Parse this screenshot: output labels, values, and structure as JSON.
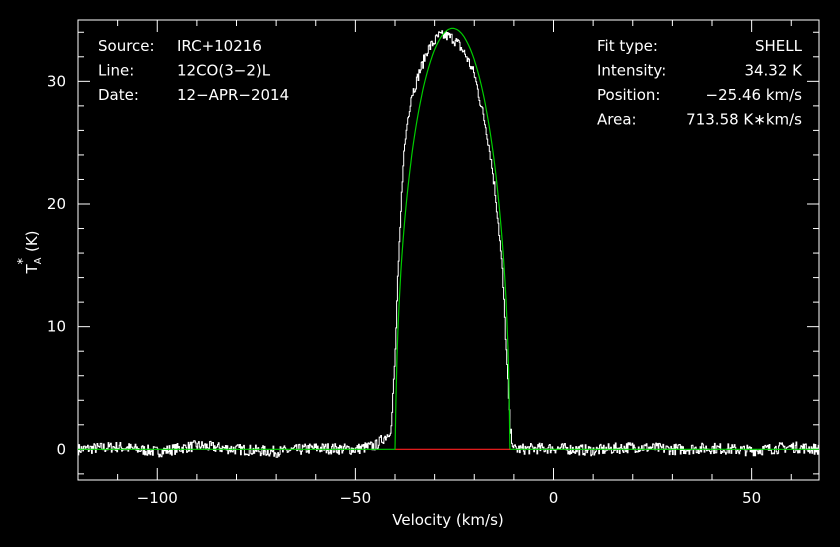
{
  "chart_data": {
    "type": "line",
    "title": "",
    "xlabel": "Velocity (km/s)",
    "ylabel_main": "T",
    "ylabel_sup": "*",
    "ylabel_sub": "A",
    "ylabel_unit": "(K)",
    "xlim": [
      -120,
      67
    ],
    "ylim": [
      -2.5,
      35
    ],
    "x_ticks": [
      -100,
      -50,
      0,
      50
    ],
    "x_tick_labels": [
      "−100",
      "−50",
      "0",
      "50"
    ],
    "y_ticks": [
      0,
      10,
      20,
      30
    ],
    "y_tick_labels": [
      "0",
      "10",
      "20",
      "30"
    ],
    "grid": false,
    "legend": "none",
    "annotations_left": [
      {
        "key": "Source:",
        "value": "IRC+10216"
      },
      {
        "key": "Line:",
        "value": "12CO(3−2)L"
      },
      {
        "key": "Date:",
        "value": "12−APR−2014"
      }
    ],
    "annotations_right": [
      {
        "key": "Fit type:",
        "value": "SHELL"
      },
      {
        "key": "Intensity:",
        "value": "34.32 K"
      },
      {
        "key": "Position:",
        "value": "−25.46 km/s"
      },
      {
        "key": "Area:",
        "value": "713.58 K∗km/s"
      }
    ],
    "series": [
      {
        "kind": "spectrum",
        "color": "#ffffff",
        "x": [
          -120,
          -110,
          -100,
          -90,
          -80,
          -70,
          -60,
          -50,
          -45,
          -42,
          -41,
          -40,
          -39.5,
          -38,
          -37,
          -36,
          -35,
          -34,
          -33,
          -32,
          -30,
          -29,
          -27,
          -25.5,
          -24,
          -22,
          -20,
          -19,
          -18,
          -17,
          -16,
          -15,
          -14,
          -13,
          -12,
          -11,
          -10,
          0,
          10,
          20,
          30,
          40,
          50,
          60,
          67
        ],
        "y": [
          0,
          0.2,
          -0.2,
          0.3,
          0,
          -0.2,
          0.1,
          0,
          0.3,
          1.2,
          1.8,
          8,
          13,
          23.5,
          26.6,
          28.8,
          29.6,
          30.7,
          31.5,
          32.5,
          33.3,
          33.7,
          33.7,
          33.5,
          33.0,
          32.0,
          30.5,
          29.0,
          27.5,
          26.0,
          24.0,
          21.5,
          18.5,
          14.5,
          8,
          1.5,
          0,
          0.1,
          -0.1,
          0.2,
          0,
          0.1,
          -0.1,
          0.2,
          0
        ]
      },
      {
        "kind": "fit",
        "color": "#00cc00",
        "fit_type": "SHELL",
        "center": -25.46,
        "peak": 34.32,
        "half_width": 14.4,
        "x_min": -120,
        "x_max": 67
      },
      {
        "kind": "baseline",
        "color": "#ff2020",
        "x": [
          -39.9,
          -11.0
        ],
        "y": [
          0,
          0
        ]
      }
    ]
  }
}
